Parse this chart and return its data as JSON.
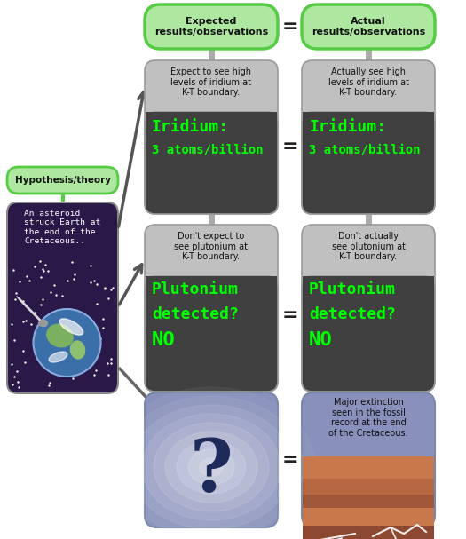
{
  "bg_color": "#ffffff",
  "green_fill": "#aee8a0",
  "green_edge": "#55cc44",
  "dark_box": "#404040",
  "light_box": "#c0c0c0",
  "green_text": "#00ff00",
  "asteroid_bg": "#2a1848",
  "header_left": "Expected\nresults/observations",
  "header_right": "Actual\nresults/observations",
  "hypothesis_label": "Hypothesis/theory",
  "asteroid_text": "An asteroid\nstruck Earth at\nthe end of the\nCretaceous..",
  "row1_expect_top": "Expect to see high\nlevels of iridium at\nK-T boundary.",
  "row1_actual_top": "Actually see high\nlevels of iridium at\nK-T boundary.",
  "row2_expect_top": "Don't expect to\nsee plutonium at\nK-T boundary.",
  "row2_actual_top": "Don't actually\nsee plutonium at\nK-T boundary.",
  "row3_actual_top": "Major extinction\nseen in the fossil\nrecord at the end\nof the Cretaceous.",
  "iridium_line1": "Iridium:",
  "iridium_line2": "3 atoms/billion",
  "pluto_line1": "Plutonium",
  "pluto_line2": "detected?",
  "pluto_line3": "NO",
  "question_mark": "?",
  "fig_w": 5.25,
  "fig_h": 6.07,
  "dpi": 100
}
